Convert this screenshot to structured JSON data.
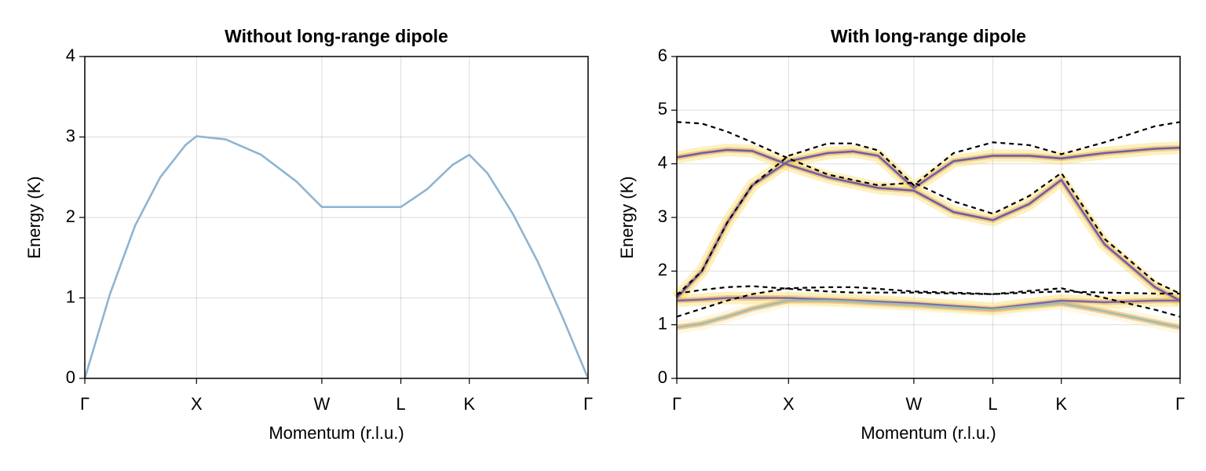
{
  "chart_data": [
    {
      "type": "line",
      "title": "Without long-range dipole",
      "xlabel": "Momentum (r.l.u.)",
      "ylabel": "Energy (K)",
      "xlim": [
        0,
        1
      ],
      "ylim": [
        0,
        4
      ],
      "xticks": [
        {
          "value": 0,
          "label": "Γ"
        },
        {
          "value": 0.222,
          "label": "X"
        },
        {
          "value": 0.471,
          "label": "W"
        },
        {
          "value": 0.628,
          "label": "L"
        },
        {
          "value": 0.764,
          "label": "K"
        },
        {
          "value": 1,
          "label": "Γ"
        }
      ],
      "yticks": [
        0,
        1,
        2,
        3,
        4
      ],
      "grid": true,
      "x": [
        0,
        0.05,
        0.1,
        0.15,
        0.2,
        0.222,
        0.28,
        0.35,
        0.42,
        0.471,
        0.55,
        0.628,
        0.68,
        0.73,
        0.764,
        0.8,
        0.85,
        0.9,
        0.95,
        1
      ],
      "series": [
        {
          "color": "#8fb4d0",
          "style": "solid",
          "values": [
            0,
            1.05,
            1.9,
            2.5,
            2.9,
            3.01,
            2.97,
            2.78,
            2.45,
            2.13,
            2.13,
            2.13,
            2.35,
            2.65,
            2.78,
            2.55,
            2.05,
            1.45,
            0.75,
            0
          ]
        }
      ]
    },
    {
      "type": "line",
      "title": "With long-range dipole",
      "xlabel": "Momentum (r.l.u.)",
      "ylabel": "Energy (K)",
      "xlim": [
        0,
        1
      ],
      "ylim": [
        0,
        6
      ],
      "xticks": [
        {
          "value": 0,
          "label": "Γ"
        },
        {
          "value": 0.222,
          "label": "X"
        },
        {
          "value": 0.471,
          "label": "W"
        },
        {
          "value": 0.628,
          "label": "L"
        },
        {
          "value": 0.764,
          "label": "K"
        },
        {
          "value": 1,
          "label": "Γ"
        }
      ],
      "yticks": [
        0,
        1,
        2,
        3,
        4,
        5,
        6
      ],
      "grid": true,
      "x": [
        0,
        0.05,
        0.1,
        0.15,
        0.222,
        0.3,
        0.35,
        0.4,
        0.471,
        0.55,
        0.628,
        0.7,
        0.764,
        0.85,
        0.95,
        1
      ],
      "series": [
        {
          "color": "#6a5fa8",
          "glow": "#f5d848",
          "style": "solid",
          "values": [
            4.12,
            4.2,
            4.26,
            4.24,
            3.98,
            3.75,
            3.65,
            3.55,
            3.5,
            3.1,
            2.95,
            3.25,
            3.7,
            2.5,
            1.7,
            1.45
          ]
        },
        {
          "color": "#6a5fa8",
          "glow": "#f5d848",
          "style": "solid",
          "values": [
            1.5,
            2.0,
            2.9,
            3.6,
            4.05,
            4.2,
            4.23,
            4.15,
            3.55,
            4.05,
            4.15,
            4.15,
            4.1,
            4.2,
            4.28,
            4.3
          ]
        },
        {
          "color": "#7a6aa8",
          "glow": "#f5d848",
          "style": "solid",
          "values": [
            1.45,
            1.47,
            1.5,
            1.5,
            1.5,
            1.47,
            1.45,
            1.43,
            1.4,
            1.35,
            1.3,
            1.38,
            1.45,
            1.42,
            1.45,
            1.45
          ]
        },
        {
          "color": "#9fbdb0",
          "glow": "#f8ecb0",
          "style": "solid",
          "values": [
            0.95,
            1.02,
            1.15,
            1.3,
            1.45,
            1.45,
            1.43,
            1.4,
            1.37,
            1.32,
            1.28,
            1.35,
            1.4,
            1.25,
            1.05,
            0.95
          ]
        },
        {
          "color": "#000000",
          "style": "dashed",
          "values": [
            4.78,
            4.75,
            4.6,
            4.4,
            4.1,
            3.8,
            3.7,
            3.6,
            3.65,
            3.3,
            3.07,
            3.4,
            3.83,
            2.6,
            1.8,
            1.58
          ]
        },
        {
          "color": "#000000",
          "style": "dashed",
          "values": [
            1.55,
            2.0,
            2.9,
            3.6,
            4.15,
            4.38,
            4.38,
            4.25,
            3.6,
            4.2,
            4.4,
            4.35,
            4.18,
            4.4,
            4.7,
            4.78
          ]
        },
        {
          "color": "#000000",
          "style": "dashed",
          "values": [
            1.58,
            1.65,
            1.7,
            1.72,
            1.67,
            1.62,
            1.6,
            1.6,
            1.6,
            1.58,
            1.57,
            1.6,
            1.62,
            1.6,
            1.58,
            1.58
          ]
        },
        {
          "color": "#000000",
          "style": "dashed",
          "values": [
            1.15,
            1.3,
            1.45,
            1.57,
            1.68,
            1.7,
            1.7,
            1.67,
            1.62,
            1.6,
            1.57,
            1.63,
            1.68,
            1.5,
            1.28,
            1.15
          ]
        }
      ]
    }
  ]
}
